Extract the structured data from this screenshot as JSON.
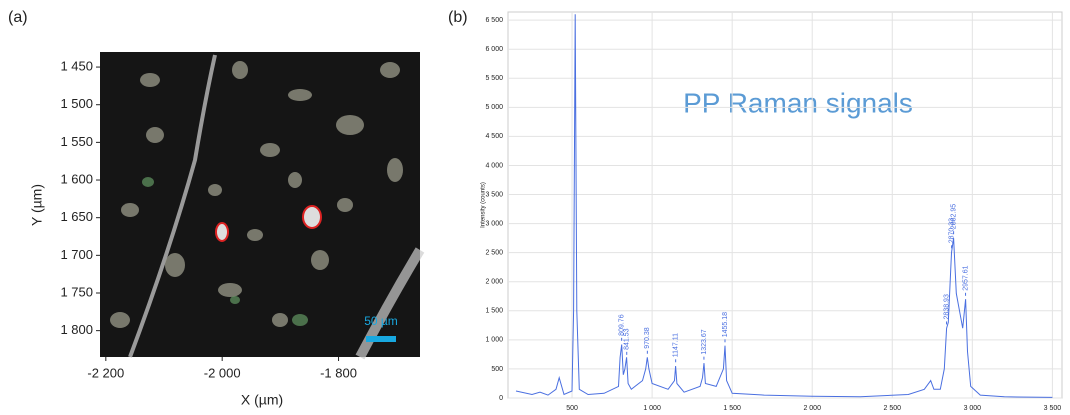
{
  "chart_data": [
    {
      "type": "image",
      "title": "(a)",
      "xlabel": "X (µm)",
      "ylabel": "Y (µm)",
      "scale_bar": "50 µm",
      "xlim": [
        -2210,
        -1660
      ],
      "ylim": [
        1835,
        1430
      ],
      "xticks": [
        {
          "value": -2200,
          "label": "-2 200"
        },
        {
          "value": -2000,
          "label": "-2 000"
        },
        {
          "value": -1800,
          "label": "-1 800"
        }
      ],
      "yticks": [
        {
          "value": 1450,
          "label": "1 450"
        },
        {
          "value": 1500,
          "label": "1 500"
        },
        {
          "value": 1550,
          "label": "1 550"
        },
        {
          "value": 1600,
          "label": "1 600"
        },
        {
          "value": 1650,
          "label": "1 650"
        },
        {
          "value": 1700,
          "label": "1 700"
        },
        {
          "value": 1750,
          "label": "1 750"
        },
        {
          "value": 1800,
          "label": "1 800"
        }
      ]
    },
    {
      "type": "line",
      "title": "(b)",
      "annotation": "PP Raman signals",
      "ylabel": "Intensity (counts)",
      "color": "#4a6fe0",
      "grid": true,
      "x": [
        150,
        250,
        300,
        350,
        400,
        420,
        450,
        500,
        510,
        520,
        530,
        545,
        600,
        700,
        790,
        800,
        810,
        820,
        830,
        841,
        850,
        870,
        940,
        960,
        970,
        980,
        1000,
        1100,
        1140,
        1147,
        1155,
        1200,
        1300,
        1315,
        1324,
        1333,
        1400,
        1445,
        1455,
        1465,
        1500,
        1700,
        2000,
        2300,
        2600,
        2700,
        2740,
        2760,
        2800,
        2825,
        2839,
        2850,
        2870,
        2883,
        2900,
        2920,
        2940,
        2958,
        2970,
        2990,
        3050,
        3200,
        3500
      ],
      "values": [
        120,
        60,
        100,
        50,
        150,
        350,
        60,
        120,
        1500,
        6600,
        1500,
        150,
        60,
        80,
        200,
        700,
        920,
        400,
        500,
        700,
        250,
        150,
        300,
        500,
        700,
        500,
        250,
        150,
        300,
        550,
        250,
        100,
        200,
        350,
        600,
        250,
        200,
        500,
        900,
        300,
        80,
        50,
        30,
        20,
        60,
        150,
        300,
        150,
        150,
        500,
        1200,
        1300,
        2500,
        2750,
        1800,
        1500,
        1200,
        1700,
        800,
        200,
        50,
        20,
        10
      ],
      "peaks": [
        809.76,
        841.53,
        970.38,
        1147.11,
        1323.67,
        1455.18,
        2838.93,
        2870.33,
        2882.95,
        2957.61
      ],
      "xlim": [
        100,
        3560
      ],
      "ylim": [
        0,
        6640
      ],
      "xticks": [
        500,
        {
          "value": 1000,
          "label": "1 000"
        },
        {
          "value": 1500,
          "label": "1 500"
        },
        {
          "value": 2000,
          "label": "2 000"
        },
        {
          "value": 2500,
          "label": "2 500"
        },
        {
          "value": 3000,
          "label": "3 000"
        },
        {
          "value": 3500,
          "label": "3 500"
        }
      ],
      "yticks": [
        0,
        500,
        {
          "value": 1000,
          "label": "1 000"
        },
        {
          "value": 1500,
          "label": "1 500"
        },
        {
          "value": 2000,
          "label": "2 000"
        },
        {
          "value": 2500,
          "label": "2 500"
        },
        {
          "value": 3000,
          "label": "3 000"
        },
        {
          "value": 3500,
          "label": "3 500"
        },
        {
          "value": 4000,
          "label": "4 000"
        },
        {
          "value": 4500,
          "label": "4 500"
        },
        {
          "value": 5000,
          "label": "5 000"
        },
        {
          "value": 5500,
          "label": "5 500"
        },
        {
          "value": 6000,
          "label": "6 000"
        },
        {
          "value": 6500,
          "label": "6 500"
        }
      ]
    }
  ]
}
